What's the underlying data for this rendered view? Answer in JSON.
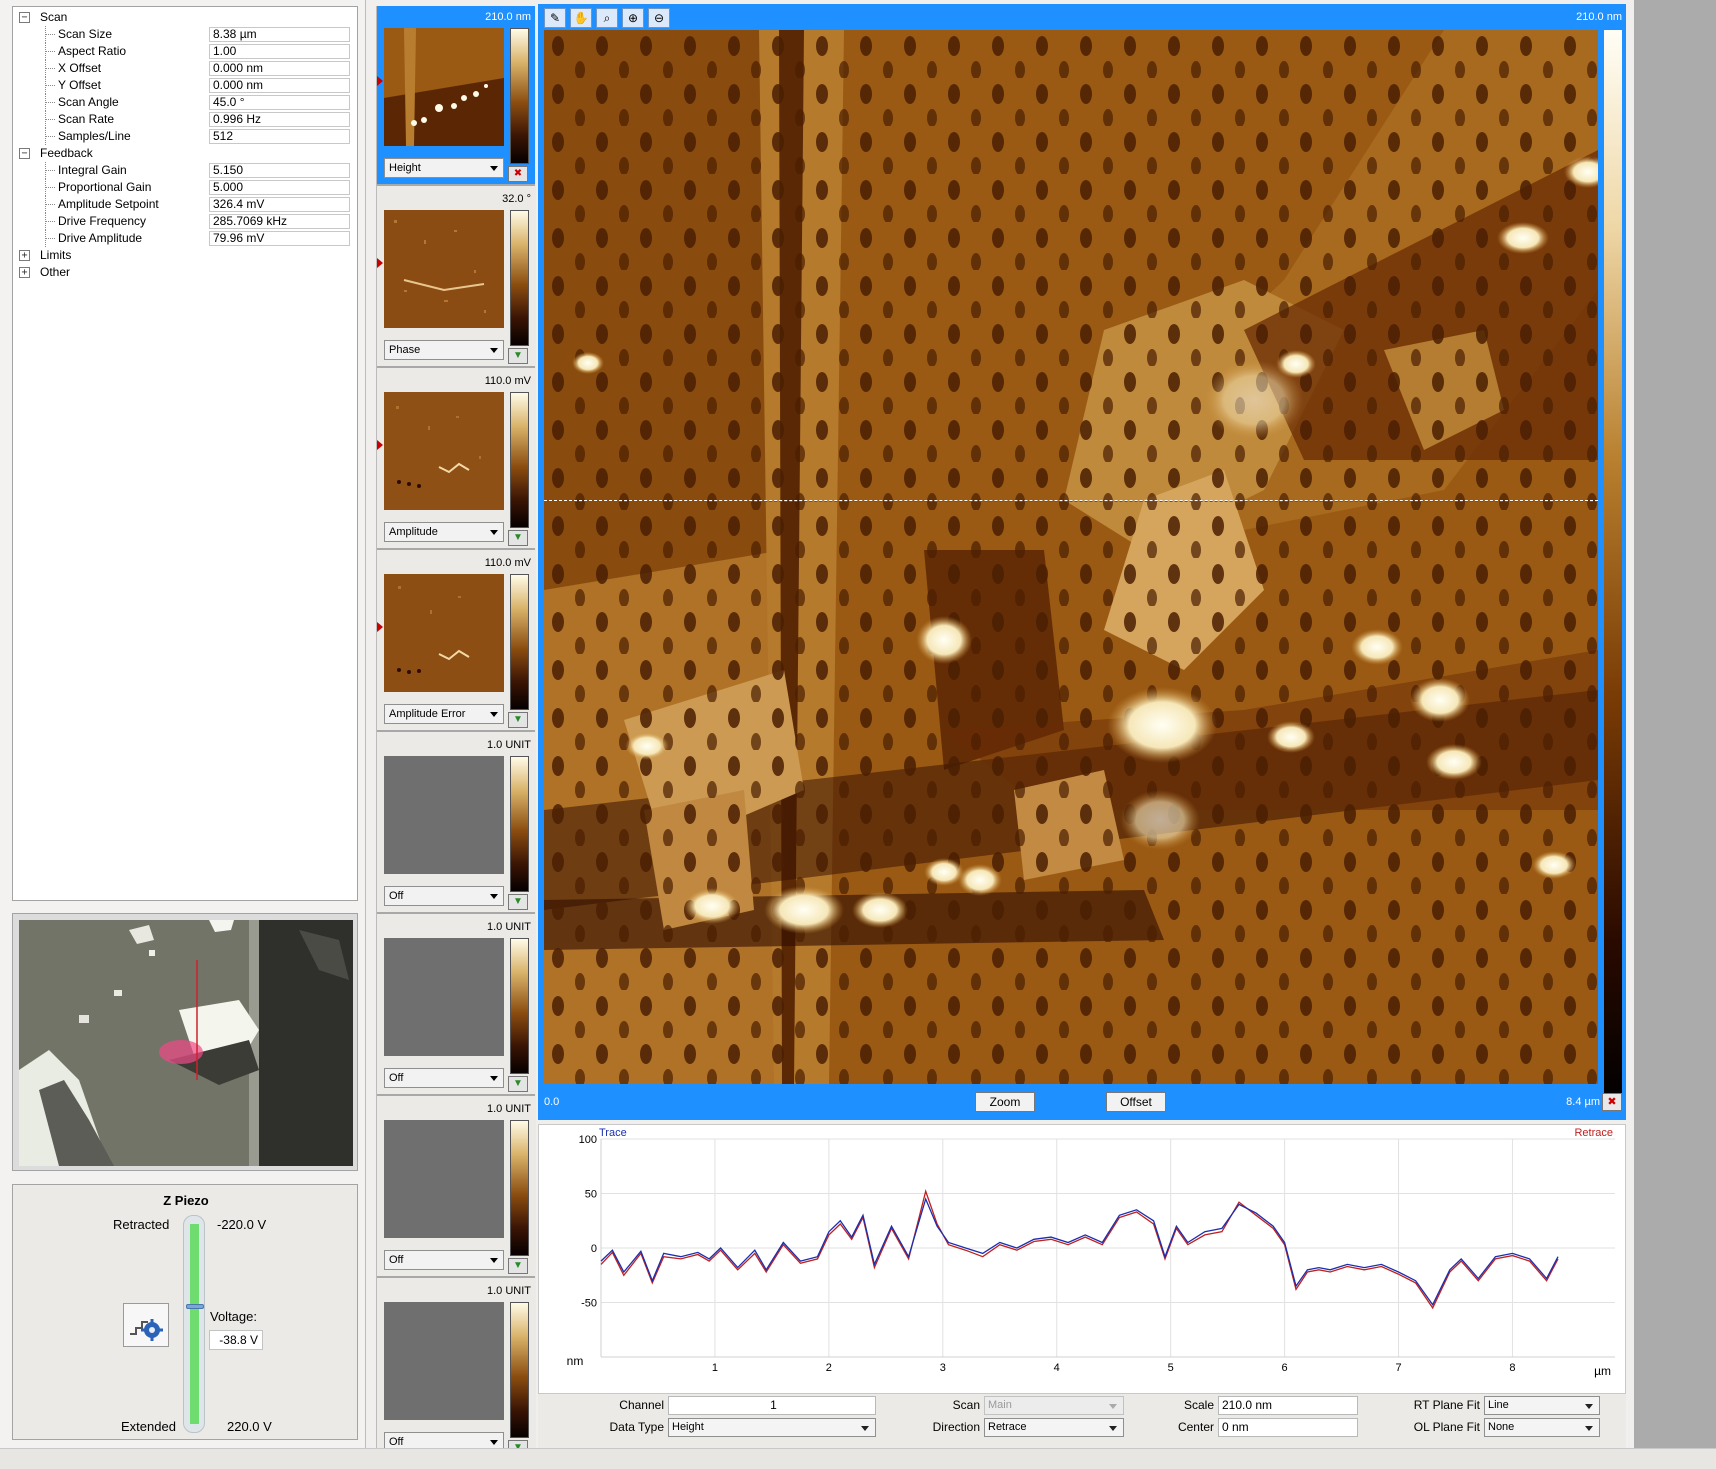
{
  "parameters": {
    "groups": [
      {
        "name": "Scan",
        "expanded": true
      },
      {
        "name": "Feedback",
        "expanded": true
      },
      {
        "name": "Limits",
        "expanded": false
      },
      {
        "name": "Other",
        "expanded": false
      }
    ],
    "scan": [
      {
        "label": "Scan Size",
        "value": "8.38 µm"
      },
      {
        "label": "Aspect Ratio",
        "value": "1.00"
      },
      {
        "label": "X Offset",
        "value": "0.000 nm"
      },
      {
        "label": "Y Offset",
        "value": "0.000 nm"
      },
      {
        "label": "Scan Angle",
        "value": "45.0 °"
      },
      {
        "label": "Scan Rate",
        "value": "0.996 Hz"
      },
      {
        "label": "Samples/Line",
        "value": "512"
      }
    ],
    "feedback": [
      {
        "label": "Integral Gain",
        "value": "5.150"
      },
      {
        "label": "Proportional Gain",
        "value": "5.000"
      },
      {
        "label": "Amplitude Setpoint",
        "value": "326.4 mV"
      },
      {
        "label": "Drive Frequency",
        "value": "285.7069 kHz"
      },
      {
        "label": "Drive Amplitude",
        "value": "79.96 mV"
      }
    ]
  },
  "z_piezo": {
    "title": "Z Piezo",
    "retracted_label": "Retracted",
    "retracted_value": "-220.0 V",
    "voltage_label": "Voltage:",
    "voltage_value": "-38.8 V",
    "extended_label": "Extended",
    "extended_value": "220.0 V",
    "level_fraction": 0.41
  },
  "channels": [
    {
      "range": "210.0 nm",
      "select": "Height",
      "active": true
    },
    {
      "range": "32.0 °",
      "select": "Phase",
      "active": false
    },
    {
      "range": "110.0 mV",
      "select": "Amplitude",
      "active": false
    },
    {
      "range": "110.0 mV",
      "select": "Amplitude Error",
      "active": false
    },
    {
      "range": "1.0 UNIT",
      "select": "Off",
      "active": false
    },
    {
      "range": "1.0 UNIT",
      "select": "Off",
      "active": false
    },
    {
      "range": "1.0 UNIT",
      "select": "Off",
      "active": false
    },
    {
      "range": "1.0 UNIT",
      "select": "Off",
      "active": false
    }
  ],
  "image": {
    "range_label": "210.0 nm",
    "x_start": "0.0",
    "x_end": "8.4 µm",
    "zoom_label": "Zoom",
    "offset_label": "Offset"
  },
  "colors": {
    "accent": "#1e90ff",
    "trace": "#1a2fb0",
    "retrace": "#c0201e"
  },
  "chart_data": {
    "type": "line",
    "xlabel": "µm",
    "ylabel": "nm",
    "xlim": [
      0,
      8.9
    ],
    "ylim": [
      -100,
      100
    ],
    "x_ticks": [
      "1",
      "2",
      "3",
      "4",
      "5",
      "6",
      "7",
      "8"
    ],
    "y_ticks": [
      "100",
      "50",
      "0",
      "-50"
    ],
    "grid": true,
    "legend": [
      "Trace",
      "Retrace"
    ],
    "x": [
      0.0,
      0.1,
      0.2,
      0.35,
      0.45,
      0.55,
      0.7,
      0.85,
      0.95,
      1.05,
      1.2,
      1.35,
      1.45,
      1.6,
      1.75,
      1.9,
      2.0,
      2.1,
      2.2,
      2.3,
      2.4,
      2.55,
      2.7,
      2.85,
      2.95,
      3.05,
      3.2,
      3.35,
      3.5,
      3.65,
      3.8,
      3.95,
      4.1,
      4.25,
      4.4,
      4.55,
      4.7,
      4.85,
      4.95,
      5.05,
      5.15,
      5.3,
      5.45,
      5.6,
      5.75,
      5.9,
      6.0,
      6.1,
      6.2,
      6.3,
      6.4,
      6.55,
      6.7,
      6.85,
      7.0,
      7.15,
      7.3,
      7.45,
      7.55,
      7.7,
      7.85,
      8.0,
      8.15,
      8.3,
      8.4
    ],
    "series": [
      {
        "name": "Trace",
        "values": [
          -12,
          -2,
          -22,
          -3,
          -30,
          -5,
          -8,
          -4,
          -10,
          0,
          -18,
          -2,
          -20,
          5,
          -12,
          -8,
          15,
          25,
          10,
          30,
          -15,
          20,
          -8,
          45,
          20,
          5,
          0,
          -5,
          5,
          0,
          8,
          10,
          5,
          12,
          5,
          30,
          35,
          25,
          -8,
          20,
          5,
          15,
          18,
          40,
          32,
          20,
          5,
          -35,
          -20,
          -18,
          -20,
          -15,
          -18,
          -15,
          -22,
          -30,
          -52,
          -20,
          -10,
          -28,
          -8,
          -5,
          -10,
          -28,
          -8
        ]
      },
      {
        "name": "Retrace",
        "values": [
          -15,
          -4,
          -25,
          -5,
          -32,
          -8,
          -10,
          -6,
          -12,
          -2,
          -20,
          -5,
          -22,
          3,
          -14,
          -10,
          12,
          22,
          8,
          28,
          -18,
          18,
          -10,
          52,
          22,
          3,
          -2,
          -8,
          3,
          -2,
          6,
          8,
          3,
          10,
          3,
          28,
          33,
          22,
          -10,
          18,
          3,
          12,
          15,
          42,
          30,
          18,
          3,
          -38,
          -22,
          -20,
          -22,
          -17,
          -20,
          -17,
          -24,
          -32,
          -55,
          -22,
          -12,
          -30,
          -10,
          -7,
          -12,
          -30,
          -10
        ]
      }
    ]
  },
  "controls": {
    "channel_label": "Channel",
    "channel_value": "1",
    "data_type_label": "Data Type",
    "data_type_value": "Height",
    "scan_label": "Scan",
    "scan_value": "Main",
    "direction_label": "Direction",
    "direction_value": "Retrace",
    "scale_label": "Scale",
    "scale_value": "210.0 nm",
    "center_label": "Center",
    "center_value": "0 nm",
    "rt_plane_label": "RT Plane Fit",
    "rt_plane_value": "Line",
    "ol_plane_label": "OL Plane Fit",
    "ol_plane_value": "None"
  }
}
